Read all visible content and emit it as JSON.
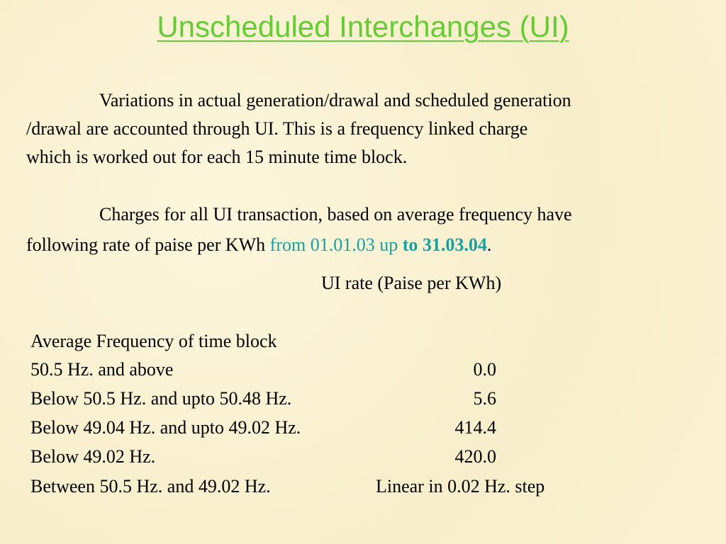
{
  "title": "Unscheduled Interchanges (UI)",
  "paragraphs": [
    {
      "lines": [
        "Variations in actual generation/drawal and scheduled generation",
        "/drawal are accounted through UI.  This is a frequency linked charge",
        "which is worked out for each 15 minute time block."
      ]
    },
    {
      "lines": [
        "Charges for all UI transaction, based on average frequency have"
      ],
      "last_line": {
        "text": "following rate of paise per KWh",
        "from": "from 01.01.03 up",
        "to": "to 31.03.04",
        "end": "."
      }
    }
  ],
  "table": {
    "rate_header": "UI rate (Paise per KWh)",
    "frequency_header": "Average Frequency of time block",
    "rows": [
      [
        "50.5 Hz. and above",
        "0.0"
      ],
      [
        "Below 50.5 Hz. and upto 50.48 Hz.",
        "5.6"
      ],
      [
        "Below 49.04 Hz. and upto 49.02 Hz.",
        "414.4"
      ],
      [
        "Below 49.02 Hz.",
        "420.0"
      ],
      [
        "Between 50.5 Hz. and 49.02 Hz.",
        "Linear in 0.02 Hz. step"
      ]
    ]
  }
}
